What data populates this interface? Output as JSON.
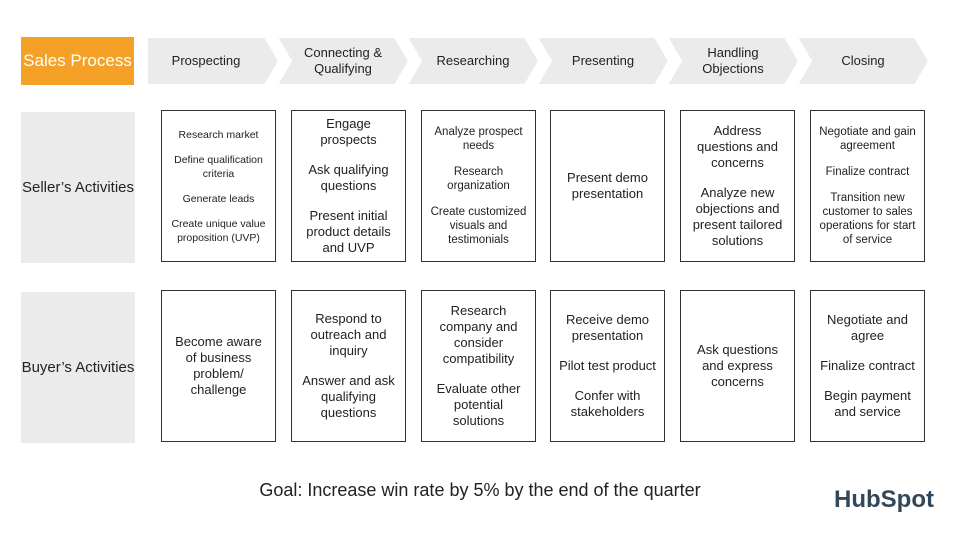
{
  "header": {
    "title": "Sales Process",
    "stages": [
      "Prospecting",
      "Connecting & Qualifying",
      "Researching",
      "Presenting",
      "Handling Objections",
      "Closing"
    ]
  },
  "rows": [
    {
      "label": "Seller’s Activities",
      "cells": [
        [
          "Research market",
          "Define qualification criteria",
          "Generate leads",
          "Create unique value proposition (UVP)"
        ],
        [
          "Engage prospects",
          "Ask qualifying questions",
          "Present initial product details and UVP"
        ],
        [
          "Analyze prospect needs",
          "Research organization",
          "Create customized visuals and testimonials"
        ],
        [
          "Present demo presentation"
        ],
        [
          "Address questions and concerns",
          "Analyze new objections and present tailored solutions"
        ],
        [
          "Negotiate and gain agreement",
          "Finalize contract",
          "Transition new customer to sales operations for start of service"
        ]
      ]
    },
    {
      "label": "Buyer’s Activities",
      "cells": [
        [
          "Become aware of business problem/ challenge"
        ],
        [
          "Respond to outreach and inquiry",
          "Answer and ask qualifying questions"
        ],
        [
          "Research company and consider compatibility",
          "Evaluate other potential solutions"
        ],
        [
          "Receive demo presentation",
          "Pilot test product",
          "Confer with stakeholders"
        ],
        [
          "Ask questions and express concerns"
        ],
        [
          "Negotiate and agree",
          "Finalize contract",
          "Begin payment and service"
        ]
      ]
    }
  ],
  "footer": {
    "goal": "Goal: Increase win rate by 5% by the end of the quarter",
    "logo": "HubSpot"
  }
}
